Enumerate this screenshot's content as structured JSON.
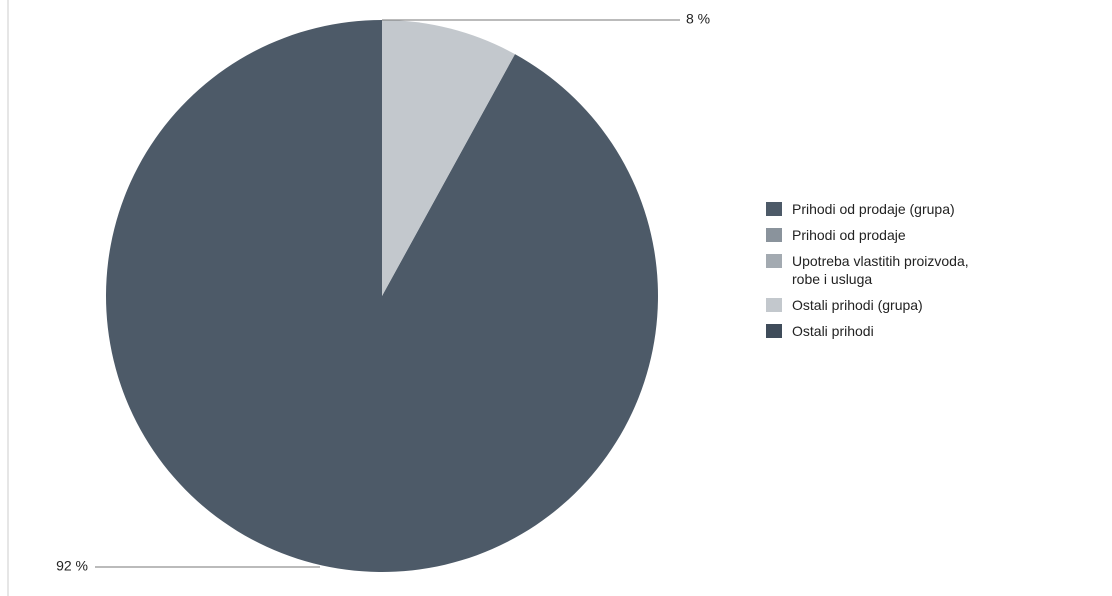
{
  "chart_data": {
    "type": "pie",
    "categories": [
      "Prihodi od prodaje (grupa)",
      "Prihodi od prodaje",
      "Upotreba vlastitih proizvoda, robe i usluga",
      "Ostali prihodi (grupa)",
      "Ostali prihodi"
    ],
    "values": [
      92,
      null,
      null,
      8,
      null
    ],
    "value_labels": [
      "92 %",
      null,
      null,
      "8 %",
      null
    ],
    "colors": [
      "#4d5a68",
      "#8a939c",
      "#a3aab1",
      "#c3c8cd",
      "#3f4c5a"
    ],
    "legend": "right"
  }
}
